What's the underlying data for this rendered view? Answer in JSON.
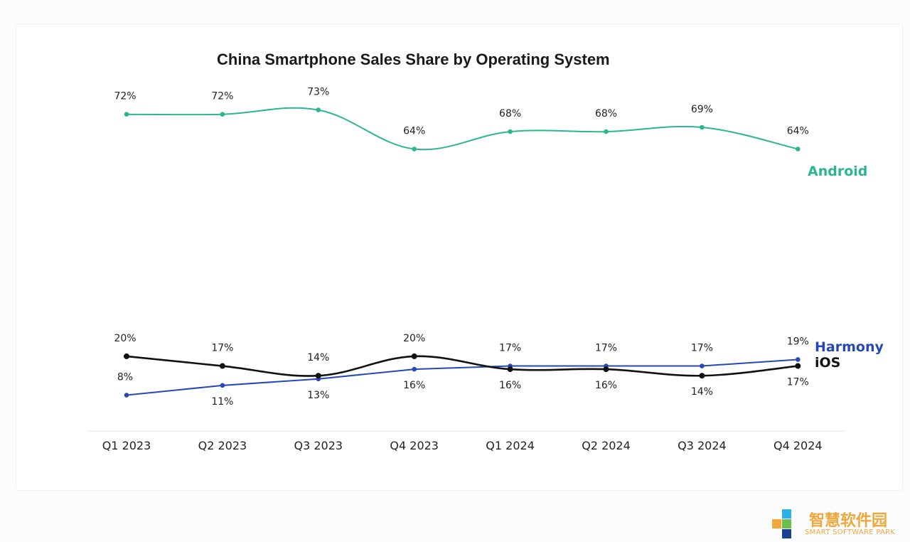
{
  "chart_data": {
    "type": "line",
    "title": "China Smartphone Sales Share by Operating System",
    "categories": [
      "Q1 2023",
      "Q2 2023",
      "Q3 2023",
      "Q4 2023",
      "Q1 2024",
      "Q2 2024",
      "Q3 2024",
      "Q4 2024"
    ],
    "series": [
      {
        "name": "Android",
        "color": "#2bb591",
        "values": [
          72,
          72,
          73,
          64,
          68,
          68,
          69,
          64
        ],
        "labels": [
          "72%",
          "72%",
          "73%",
          "64%",
          "68%",
          "68%",
          "69%",
          "64%"
        ],
        "label_position": "above"
      },
      {
        "name": "Harmony",
        "color": "#2547b8",
        "values": [
          8,
          11,
          13,
          16,
          17,
          17,
          17,
          19
        ],
        "labels": [
          "8%",
          "11%",
          "13%",
          "16%",
          "17%",
          "17%",
          "17%",
          "19%"
        ],
        "label_position": [
          "above",
          "below",
          "below",
          "below",
          "above",
          "above",
          "above",
          "above"
        ]
      },
      {
        "name": "iOS",
        "color": "#111111",
        "values": [
          20,
          17,
          14,
          20,
          16,
          16,
          14,
          17
        ],
        "labels": [
          "20%",
          "17%",
          "14%",
          "20%",
          "16%",
          "16%",
          "14%",
          "17%"
        ],
        "label_position": [
          "above",
          "above",
          "above",
          "above",
          "below",
          "below",
          "below",
          "below"
        ]
      }
    ],
    "xlabel": "",
    "ylabel": "",
    "grid": false,
    "legend": "inline-right"
  },
  "watermark": {
    "text_cn": "智慧软件园",
    "text_en": "SMART SOFTWARE PARK",
    "colors": [
      "#2bb0e8",
      "#f2a73b",
      "#6cc04a",
      "#1b3f8f"
    ]
  }
}
